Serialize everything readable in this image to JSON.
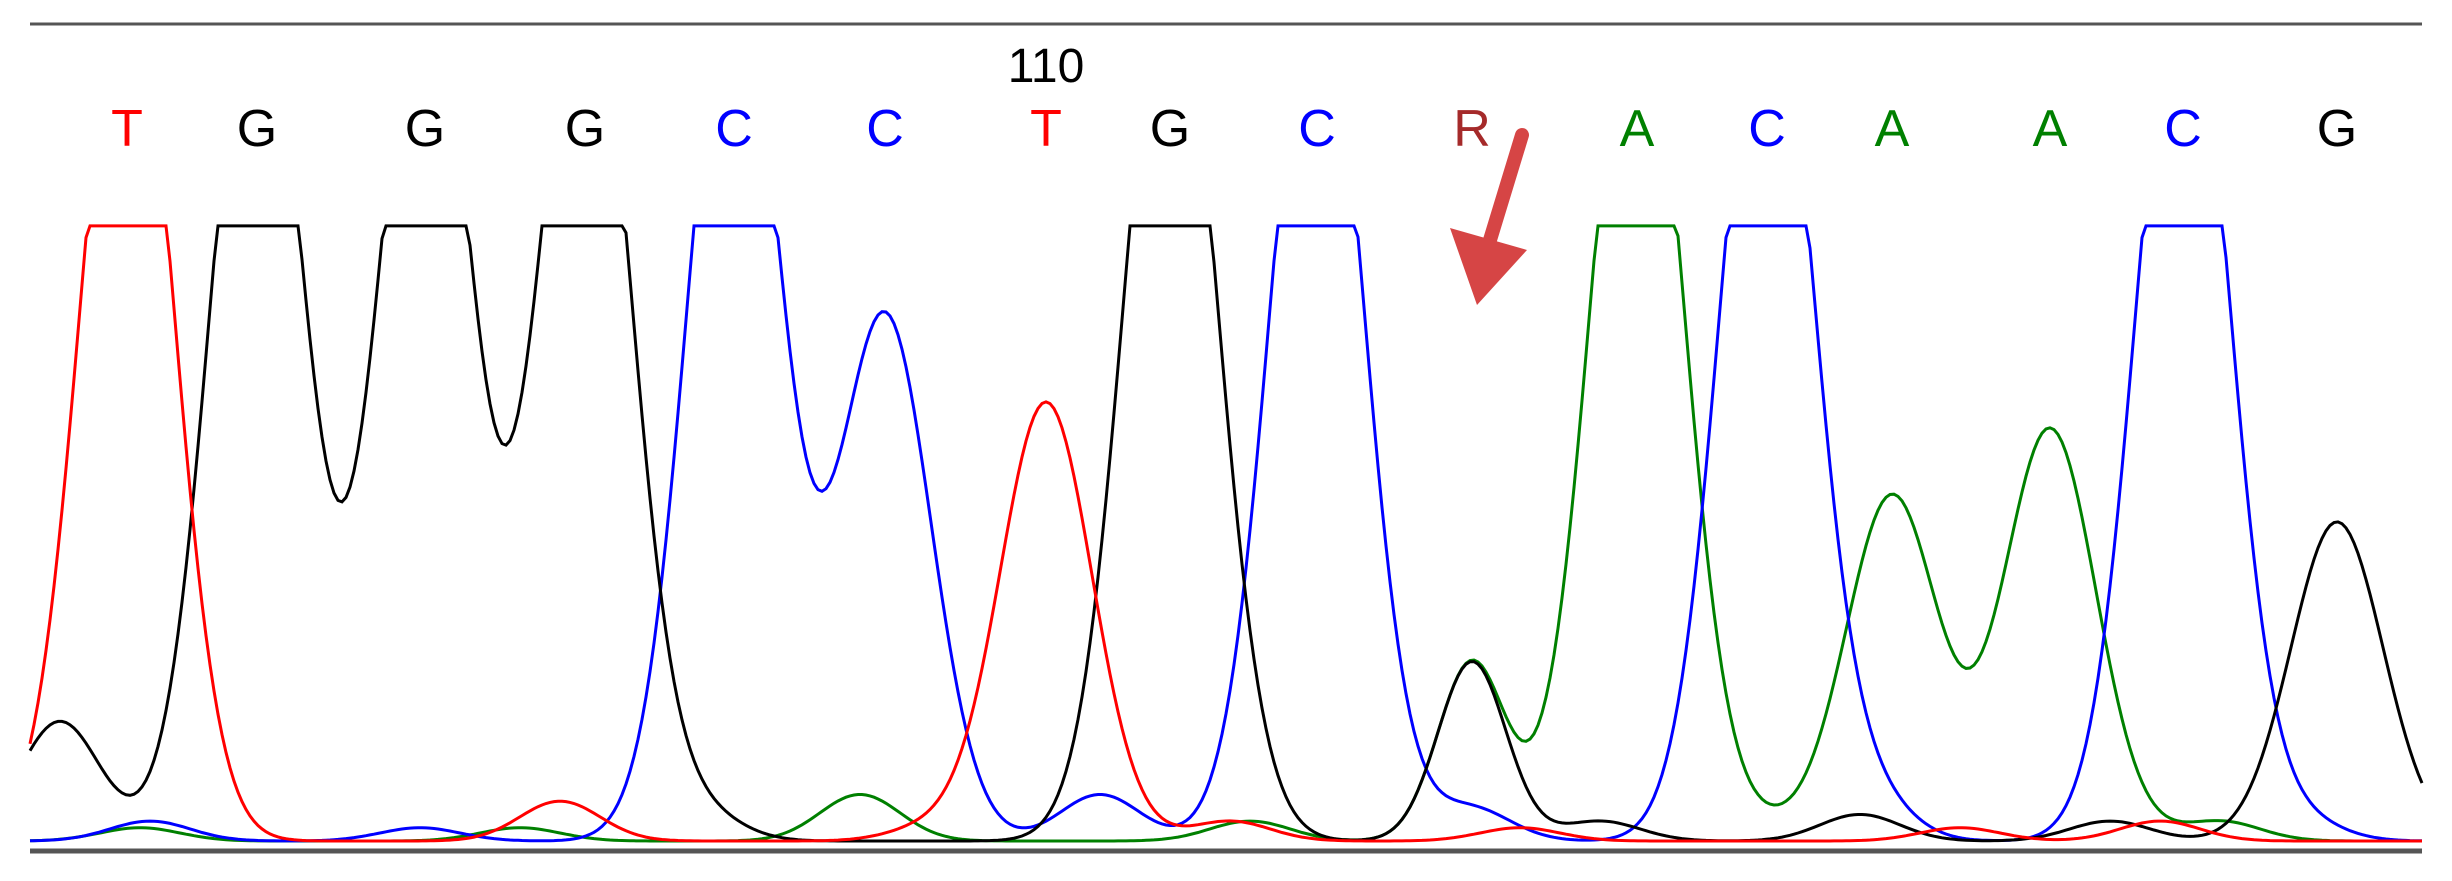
{
  "chart_data": {
    "type": "line",
    "title": "",
    "xlabel": "",
    "ylabel": "",
    "ylim": [
      0,
      1
    ],
    "position_marker": {
      "label": "110",
      "base_index": 6
    },
    "arrow_annotation": {
      "target_base_index": 9,
      "color": "#d64545"
    },
    "base_colors": {
      "A": "#008000",
      "C": "#0000ff",
      "G": "#000000",
      "T": "#ff0000",
      "R": "#a52a2a"
    },
    "base_calls": [
      "T",
      "G",
      "G",
      "G",
      "C",
      "C",
      "T",
      "G",
      "C",
      "R",
      "A",
      "C",
      "A",
      "A",
      "C",
      "G"
    ],
    "peaks": [
      {
        "base": "T",
        "height": 0.94,
        "clipped": true
      },
      {
        "base": "G",
        "height": 0.94,
        "clipped": true
      },
      {
        "base": "G",
        "height": 0.94,
        "clipped": true
      },
      {
        "base": "G",
        "height": 0.94,
        "clipped": true
      },
      {
        "base": "C",
        "height": 0.94,
        "clipped": true
      },
      {
        "base": "C",
        "height": 0.79,
        "clipped": false
      },
      {
        "base": "T",
        "height": 0.66,
        "clipped": false
      },
      {
        "base": "G",
        "height": 0.94,
        "clipped": true
      },
      {
        "base": "C",
        "height": 0.94,
        "clipped": true
      },
      {
        "base": "R",
        "height": 0.27,
        "clipped": false,
        "components": {
          "A": 0.27,
          "G": 0.27
        }
      },
      {
        "base": "A",
        "height": 0.94,
        "clipped": true
      },
      {
        "base": "C",
        "height": 0.94,
        "clipped": true
      },
      {
        "base": "A",
        "height": 0.52,
        "clipped": false
      },
      {
        "base": "A",
        "height": 0.62,
        "clipped": false
      },
      {
        "base": "C",
        "height": 0.94,
        "clipped": true
      },
      {
        "base": "G",
        "height": 0.48,
        "clipped": false
      }
    ],
    "series": [
      {
        "trace": "A",
        "color": "#008000"
      },
      {
        "trace": "C",
        "color": "#0000ff"
      },
      {
        "trace": "G",
        "color": "#000000"
      },
      {
        "trace": "T",
        "color": "#ff0000"
      }
    ]
  }
}
